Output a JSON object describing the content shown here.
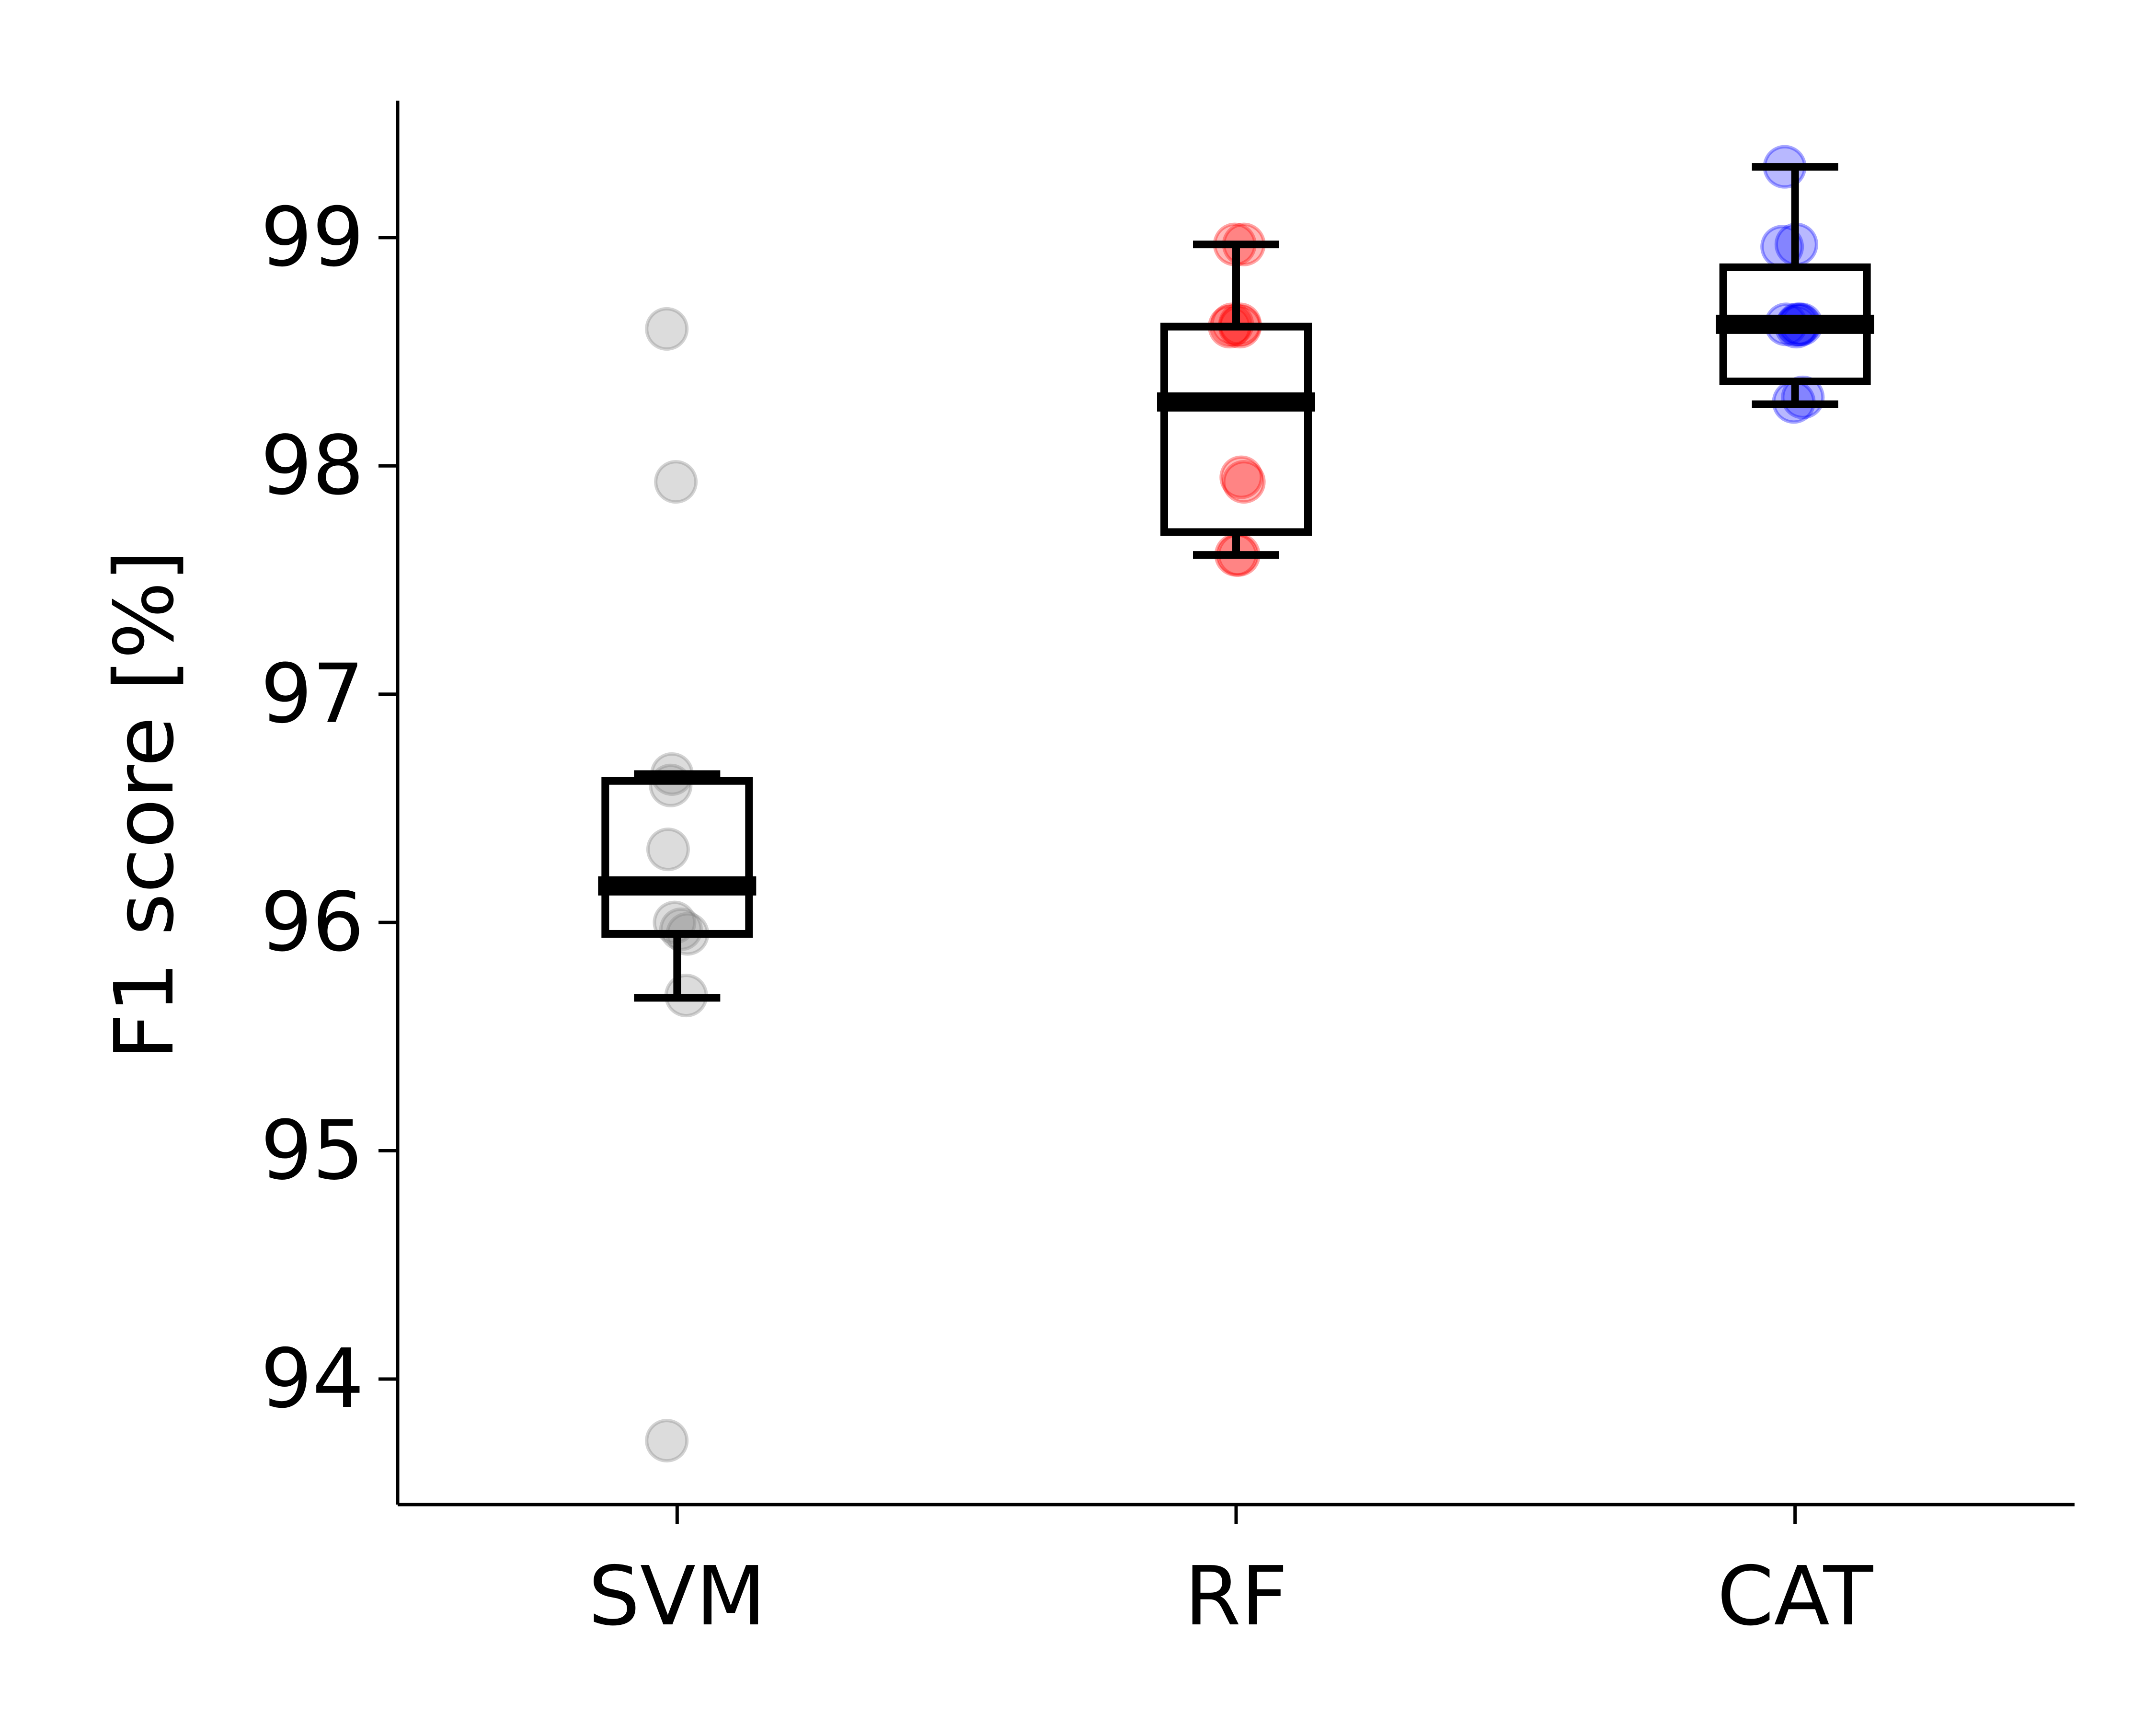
{
  "chart_data": {
    "type": "box",
    "categories": [
      "SVM",
      "RF",
      "CAT"
    ],
    "ylabel": "F1 score [%]",
    "xlabel": "",
    "title": "",
    "ylim": [
      93.45,
      99.6
    ],
    "yticks": [
      94,
      95,
      96,
      97,
      98,
      99
    ],
    "grid": false,
    "legend": "none",
    "boxes": [
      {
        "name": "SVM",
        "whisker_low": 95.67,
        "q1": 95.95,
        "median": 96.16,
        "q3": 96.62,
        "whisker_high": 96.65
      },
      {
        "name": "RF",
        "whisker_low": 97.61,
        "q1": 97.71,
        "median": 98.28,
        "q3": 98.61,
        "whisker_high": 98.97
      },
      {
        "name": "CAT",
        "whisker_low": 98.27,
        "q1": 98.37,
        "median": 98.62,
        "q3": 98.87,
        "whisker_high": 99.31
      }
    ],
    "series": [
      {
        "category": "SVM",
        "color": "#808080",
        "x": [
          0.92,
          0.99,
          0.96,
          0.95,
          0.93,
          0.98,
          1.03,
          1.08,
          1.07,
          0.92
        ],
        "values": [
          98.6,
          97.93,
          96.65,
          96.6,
          96.32,
          96.0,
          95.97,
          95.95,
          95.68,
          93.73
        ]
      },
      {
        "category": "RF",
        "color": "#ff0000",
        "x": [
          0.99,
          1.06,
          0.95,
          1.03,
          1.04,
          1.06,
          1.02,
          1.0,
          1.03,
          0.97
        ],
        "values": [
          98.97,
          98.97,
          98.61,
          98.61,
          97.95,
          97.93,
          97.61,
          97.61,
          98.62,
          98.62
        ],
        "x_offsets": [
          0.0
        ]
      },
      {
        "category": "CAT",
        "color": "#0000ff",
        "x": [
          0.92,
          0.9,
          1.01,
          0.93,
          1.03,
          1.05,
          0.99,
          1.06,
          1.02,
          1.01
        ],
        "values": [
          99.31,
          98.96,
          98.97,
          98.62,
          98.62,
          98.62,
          98.28,
          98.3,
          98.62,
          98.61
        ]
      }
    ],
    "colors": {
      "axis": "#000000",
      "box": "#000000"
    }
  }
}
